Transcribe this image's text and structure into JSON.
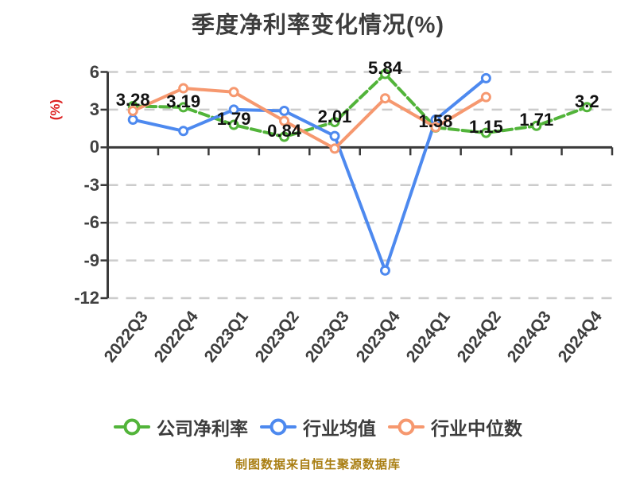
{
  "title": "季度净利率变化情况(%)",
  "footer": "制图数据来自恒生聚源数据库",
  "chart_data": {
    "type": "line",
    "title": "季度净利率变化情况(%)",
    "ylabel": "(%)",
    "ylim": [
      -12,
      6
    ],
    "yticks": [
      6,
      3,
      0,
      -3,
      -6,
      -9,
      -12
    ],
    "grid": "horizontal dashed gridlines, solid zero axis line",
    "legend_position": "bottom",
    "categories": [
      "2022Q3",
      "2022Q4",
      "2023Q1",
      "2023Q2",
      "2023Q3",
      "2023Q4",
      "2024Q1",
      "2024Q2",
      "2024Q3",
      "2024Q4"
    ],
    "series": [
      {
        "name": "公司净利率",
        "color": "#52b43a",
        "line_style": "dashed",
        "values": [
          3.28,
          3.19,
          1.79,
          0.84,
          2.01,
          5.84,
          1.58,
          1.15,
          1.71,
          3.2
        ],
        "labels": [
          "3.28",
          "3.19",
          "1.79",
          "0.84",
          "2.01",
          "5.84",
          "1.58",
          "1.15",
          "1.71",
          "3.2"
        ]
      },
      {
        "name": "行业均值",
        "color": "#4d89ef",
        "line_style": "solid",
        "values": [
          2.2,
          1.3,
          3.0,
          2.9,
          0.9,
          -9.8,
          2.2,
          5.5,
          null,
          null
        ],
        "labels": null
      },
      {
        "name": "行业中位数",
        "color": "#f6986f",
        "line_style": "solid",
        "values": [
          2.9,
          4.7,
          4.4,
          2.1,
          -0.1,
          3.9,
          1.6,
          4.0,
          null,
          null
        ],
        "labels": null
      }
    ],
    "colors": {
      "grid": "#cccccc",
      "axis": "#3a3a3a",
      "tick_text": "#404040",
      "x_label_text": "#3d3d3d",
      "data_label": "#121212",
      "y_unit_label": "#dd2222",
      "title_text": "#3d3d3d",
      "legend_text": "#3c3c3c",
      "footer_text": "#a97e12",
      "marker_fill": "#ffffff"
    }
  }
}
